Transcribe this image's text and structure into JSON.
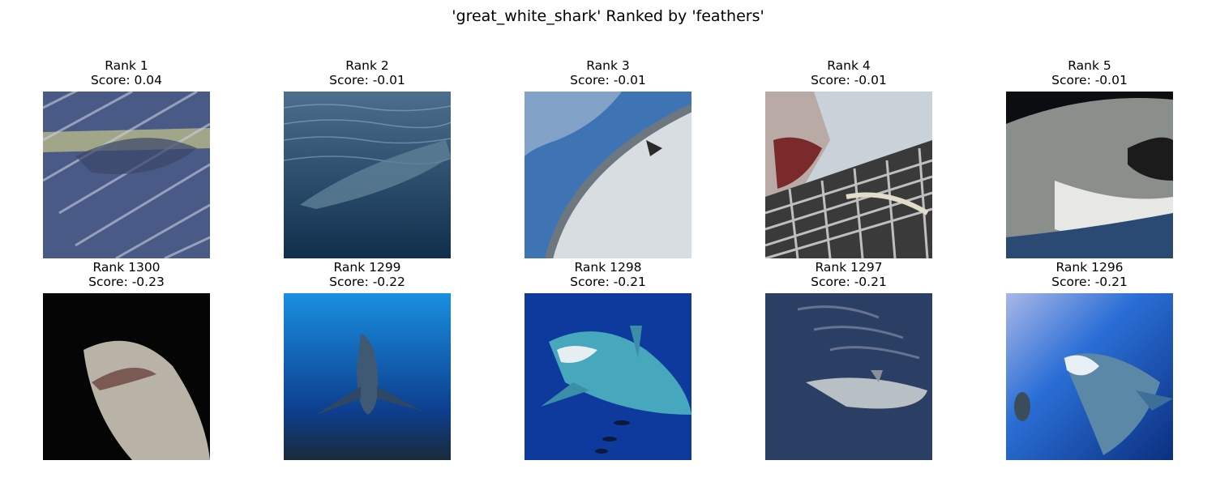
{
  "title": "'great_white_shark' Ranked by 'feathers'",
  "top_row": [
    {
      "rank": "Rank 1",
      "score": "Score: 0.04"
    },
    {
      "rank": "Rank 2",
      "score": "Score: -0.01"
    },
    {
      "rank": "Rank 3",
      "score": "Score: -0.01"
    },
    {
      "rank": "Rank 4",
      "score": "Score: -0.01"
    },
    {
      "rank": "Rank 5",
      "score": "Score: -0.01"
    }
  ],
  "bottom_row": [
    {
      "rank": "Rank 1300",
      "score": "Score: -0.23"
    },
    {
      "rank": "Rank 1299",
      "score": "Score: -0.22"
    },
    {
      "rank": "Rank 1298",
      "score": "Score: -0.21"
    },
    {
      "rank": "Rank 1297",
      "score": "Score: -0.21"
    },
    {
      "rank": "Rank 1296",
      "score": "Score: -0.21"
    }
  ]
}
